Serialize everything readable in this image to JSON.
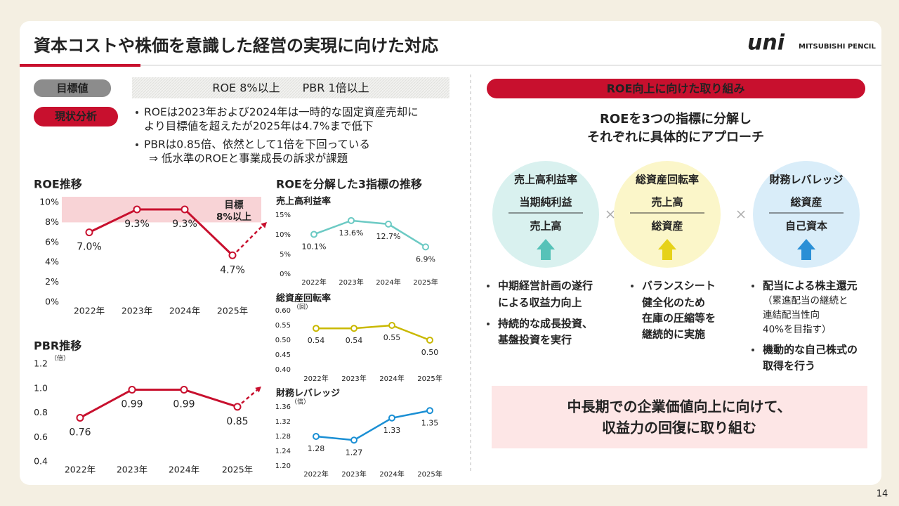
{
  "header": {
    "title": "資本コストや株価を意識した経営の実現に向けた対応",
    "logo": "uni",
    "brand": "MITSUBISHI PENCIL"
  },
  "page_number": 14,
  "left": {
    "target_label": "目標値",
    "target_text": "ROE  8%以上　　PBR  1倍以上",
    "status_label": "現状分析",
    "bullets": [
      [
        "ROEは2023年および2024年は一時的な固定資産売却に",
        "より目標値を超えたが2025年は4.7%まで低下"
      ],
      [
        "PBRは0.85倍、依然として1倍を下回っている"
      ]
    ],
    "note": "⇒ 低水準のROEと事業成長の訴求が課題",
    "decomposition_title": "ROEを分解した3指標の推移"
  },
  "right": {
    "heading": "ROE向上に向けた取り組み",
    "subtitle": [
      "ROEを3つの指標に分解し",
      "それぞれに具体的にアプローチ"
    ],
    "factors": [
      {
        "name": "売上高利益率",
        "numerator": "当期純利益",
        "denominator": "売上高",
        "bullets": [
          [
            "中期経営計画の遂行",
            "による収益力向上"
          ],
          [
            "持続的な成長投資、",
            "基盤投資を実行"
          ]
        ]
      },
      {
        "name": "総資産回転率",
        "numerator": "売上高",
        "denominator": "総資産",
        "bullets": [
          [
            "バランスシート",
            "健全化のため",
            "在庫の圧縮等を",
            "継続的に実施"
          ]
        ]
      },
      {
        "name": "財務レバレッジ",
        "numerator": "総資産",
        "denominator": "自己資本",
        "bullets": [
          [
            "配当による株主還元"
          ],
          [
            "機動的な自己株式の",
            "取得を行う"
          ]
        ],
        "note": [
          "（累進配当の継続と",
          "連結配当性向",
          "40%を目指す）"
        ]
      }
    ],
    "conclusion": [
      "中長期での企業価値向上に向けて、",
      "収益力の回復に取り組む"
    ]
  },
  "chart_data": [
    {
      "type": "line",
      "title": "ROE推移",
      "categories": [
        "2022年",
        "2023年",
        "2024年",
        "2025年"
      ],
      "values": [
        7.0,
        9.3,
        9.3,
        4.7
      ],
      "value_labels": [
        "7.0%",
        "9.3%",
        "9.3%",
        "4.7%"
      ],
      "color": "#c8102e",
      "ylim": [
        0,
        10
      ],
      "yticks": [
        {
          "value": 0,
          "label": "0%"
        },
        {
          "value": 2,
          "label": "2%"
        },
        {
          "value": 4,
          "label": "4%"
        },
        {
          "value": 6,
          "label": "6%"
        },
        {
          "value": 8,
          "label": "8%"
        },
        {
          "value": 10,
          "label": "10%"
        }
      ],
      "target": 8,
      "annotation": [
        "目標",
        "8%以上"
      ]
    },
    {
      "type": "line",
      "title": "PBR推移",
      "unit": "（倍）",
      "categories": [
        "2022年",
        "2023年",
        "2024年",
        "2025年"
      ],
      "values": [
        0.76,
        0.99,
        0.99,
        0.85
      ],
      "color": "#c8102e",
      "ylim": [
        0.4,
        1.2
      ],
      "yticks": [
        0.4,
        0.6,
        0.8,
        {
          "value": 1.0,
          "label": "1.0"
        },
        1.2
      ]
    },
    {
      "type": "line",
      "title": "売上高利益率",
      "categories": [
        "2022年",
        "2023年",
        "2024年",
        "2025年"
      ],
      "values": [
        10.1,
        13.6,
        12.7,
        6.9
      ],
      "value_labels": [
        "10.1%",
        "13.6%",
        "12.7%",
        "6.9%"
      ],
      "color": "#6ccac4",
      "ylim": [
        0,
        15
      ],
      "yticks": [
        {
          "value": 0,
          "label": "0%"
        },
        {
          "value": 5,
          "label": "5%"
        },
        {
          "value": 10,
          "label": "10%"
        },
        {
          "value": 15,
          "label": "15%"
        }
      ]
    },
    {
      "type": "line",
      "title": "総資産回転率",
      "unit": "（回）",
      "categories": [
        "2022年",
        "2023年",
        "2024年",
        "2025年"
      ],
      "values": [
        0.54,
        0.54,
        0.55,
        0.5
      ],
      "value_labels": [
        "0.54",
        "0.54",
        "0.55",
        "0.50"
      ],
      "color": "#c9b800",
      "ylim": [
        0.4,
        0.6
      ],
      "yticks": [
        {
          "value": 0.4,
          "label": "0.40"
        },
        0.45,
        {
          "value": 0.5,
          "label": "0.50"
        },
        0.55,
        {
          "value": 0.6,
          "label": "0.60"
        }
      ]
    },
    {
      "type": "line",
      "title": "財務レバレッジ",
      "unit": "（倍）",
      "categories": [
        "2022年",
        "2023年",
        "2024年",
        "2025年"
      ],
      "values": [
        1.28,
        1.27,
        1.33,
        1.35
      ],
      "color": "#1a8fd4",
      "ylim": [
        1.2,
        1.36
      ],
      "yticks": [
        {
          "value": 1.2,
          "label": "1.20"
        },
        1.24,
        1.28,
        1.32,
        1.36
      ]
    }
  ]
}
